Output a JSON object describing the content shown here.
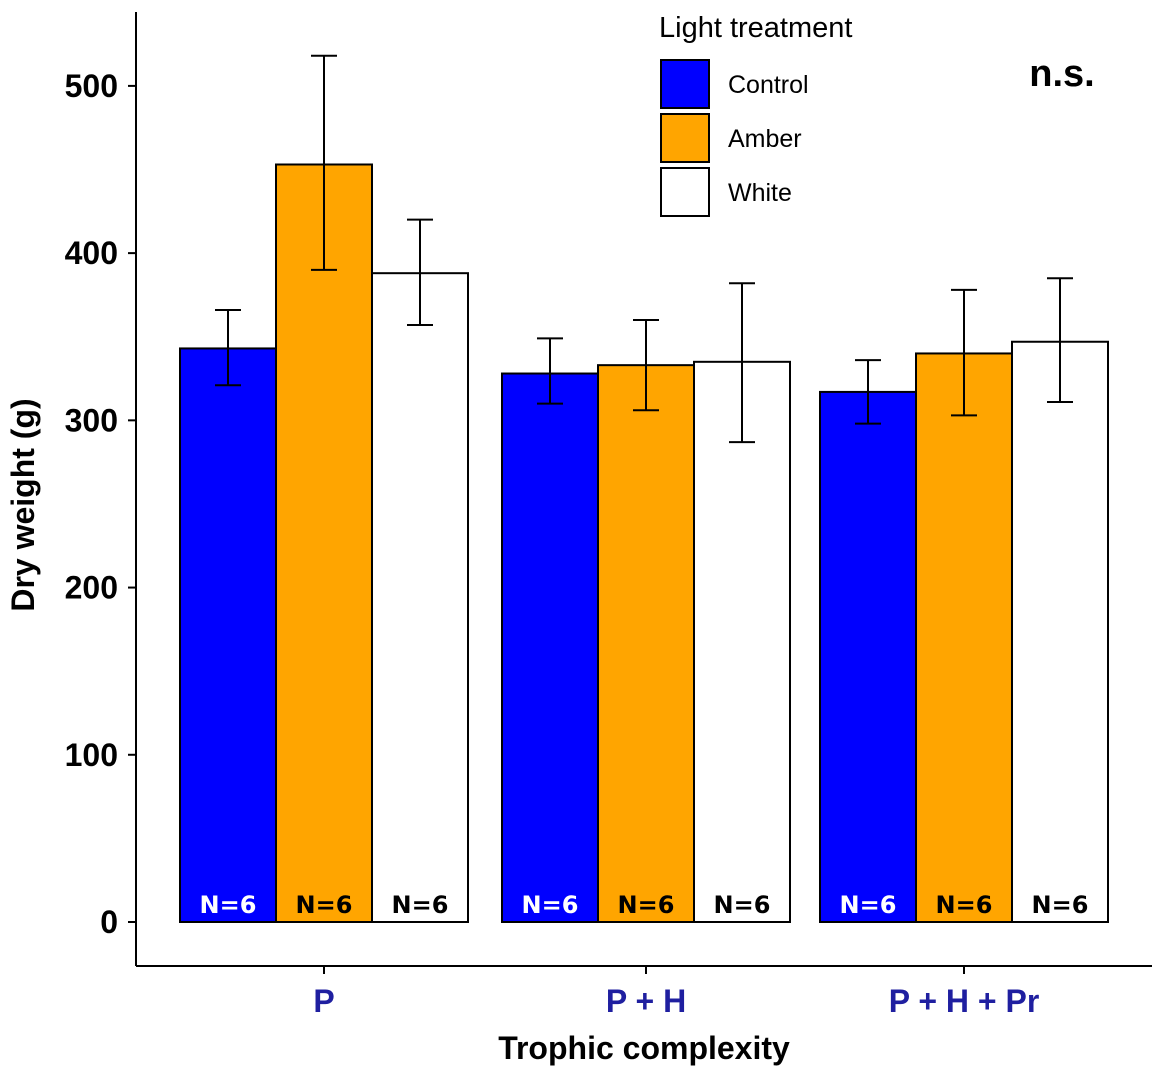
{
  "chart_data": {
    "type": "bar",
    "categories": [
      "P",
      "P + H",
      "P + H + Pr"
    ],
    "xlabel": "Trophic complexity",
    "ylabel": "Dry weight (g)",
    "ylim": [
      0,
      500
    ],
    "yticks": [
      "0",
      "100",
      "200",
      "300",
      "400",
      "500"
    ],
    "legend": {
      "title": "Light treatment",
      "placement": "top-center"
    },
    "annotation": "n.s.",
    "series": [
      {
        "name": "Control",
        "color": "#0000ff",
        "label_color": "#ffffff",
        "values": [
          343,
          328,
          317
        ],
        "error_low": [
          321,
          310,
          298
        ],
        "error_high": [
          366,
          349,
          336
        ],
        "n_labels": [
          "N=6",
          "N=6",
          "N=6"
        ]
      },
      {
        "name": "Amber",
        "color": "#ffa500",
        "label_color": "#000000",
        "values": [
          453,
          333,
          340
        ],
        "error_low": [
          390,
          306,
          303
        ],
        "error_high": [
          518,
          360,
          378
        ],
        "n_labels": [
          "N=6",
          "N=6",
          "N=6"
        ]
      },
      {
        "name": "White",
        "color": "#ffffff",
        "label_color": "#000000",
        "values": [
          388,
          335,
          347
        ],
        "error_low": [
          357,
          287,
          311
        ],
        "error_high": [
          420,
          382,
          385
        ],
        "n_labels": [
          "N=6",
          "N=6",
          "N=6"
        ]
      }
    ]
  }
}
